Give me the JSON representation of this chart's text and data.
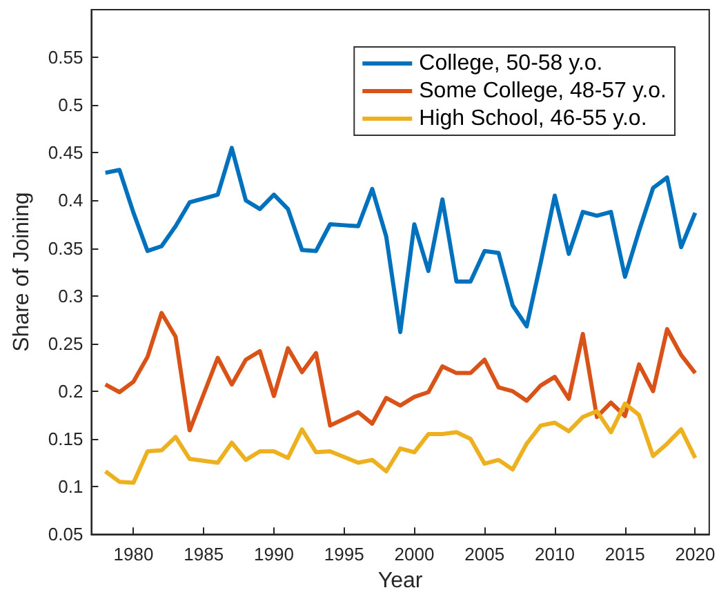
{
  "chart_data": {
    "type": "line",
    "xlabel": "Year",
    "ylabel": "Share of Joining",
    "x": [
      1978,
      1979,
      1980,
      1981,
      1982,
      1983,
      1984,
      1985,
      1986,
      1987,
      1988,
      1989,
      1990,
      1991,
      1992,
      1993,
      1994,
      1995,
      1996,
      1997,
      1998,
      1999,
      2000,
      2001,
      2002,
      2003,
      2004,
      2005,
      2006,
      2007,
      2008,
      2009,
      2010,
      2011,
      2012,
      2013,
      2014,
      2015,
      2016,
      2017,
      2018,
      2019,
      2020
    ],
    "series": [
      {
        "name": "College, 50-58 y.o.",
        "color": "#0072bd",
        "values": [
          0.429,
          0.432,
          0.387,
          0.347,
          0.352,
          0.373,
          0.398,
          0.402,
          0.406,
          0.455,
          0.4,
          0.391,
          0.406,
          0.391,
          0.348,
          0.347,
          0.375,
          0.374,
          0.373,
          0.412,
          0.362,
          0.262,
          0.375,
          0.326,
          0.401,
          0.315,
          0.315,
          0.347,
          0.345,
          0.29,
          0.268,
          0.335,
          0.405,
          0.344,
          0.388,
          0.384,
          0.388,
          0.32,
          0.368,
          0.413,
          0.424,
          0.351,
          0.387
        ]
      },
      {
        "name": "Some College, 48-57 y.o.",
        "color": "#d95319",
        "values": [
          0.207,
          0.199,
          0.21,
          0.236,
          0.282,
          0.257,
          0.159,
          0.197,
          0.235,
          0.207,
          0.233,
          0.242,
          0.195,
          0.245,
          0.22,
          0.24,
          0.164,
          0.171,
          0.178,
          0.166,
          0.193,
          0.185,
          0.194,
          0.199,
          0.226,
          0.219,
          0.219,
          0.233,
          0.204,
          0.2,
          0.19,
          0.206,
          0.215,
          0.192,
          0.26,
          0.173,
          0.188,
          0.174,
          0.228,
          0.2,
          0.265,
          0.238,
          0.219
        ]
      },
      {
        "name": "High School, 46-55 y.o.",
        "color": "#edb120",
        "values": [
          0.116,
          0.105,
          0.104,
          0.137,
          0.138,
          0.152,
          0.129,
          0.127,
          0.125,
          0.146,
          0.128,
          0.137,
          0.137,
          0.13,
          0.16,
          0.136,
          0.137,
          0.131,
          0.125,
          0.128,
          0.116,
          0.14,
          0.136,
          0.155,
          0.155,
          0.157,
          0.15,
          0.124,
          0.128,
          0.118,
          0.145,
          0.164,
          0.167,
          0.158,
          0.173,
          0.179,
          0.157,
          0.187,
          0.175,
          0.132,
          0.145,
          0.16,
          0.13
        ]
      }
    ],
    "xlim": [
      1977,
      2021
    ],
    "xticks": [
      1980,
      1985,
      1990,
      1995,
      2000,
      2005,
      2010,
      2015,
      2020
    ],
    "ylim": [
      0.05,
      0.6
    ],
    "yticks": [
      0.05,
      0.1,
      0.15,
      0.2,
      0.25,
      0.3,
      0.35,
      0.4,
      0.45,
      0.5,
      0.55
    ],
    "grid": false,
    "legend": "top right",
    "marker": "none",
    "line_style": "solid"
  }
}
